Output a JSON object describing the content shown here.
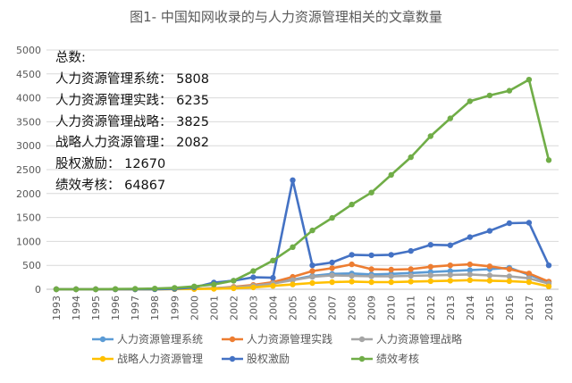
{
  "chart_data": {
    "type": "line",
    "title": "图1- 中国知网收录的与人力资源管理相关的文章数量",
    "xlabel": "",
    "ylabel": "",
    "ylim": [
      0,
      5000
    ],
    "yticks": [
      0,
      500,
      1000,
      1500,
      2000,
      2500,
      3000,
      3500,
      4000,
      4500,
      5000
    ],
    "grid": true,
    "legend_position": "bottom",
    "x": [
      "1993",
      "1994",
      "1995",
      "1996",
      "1997",
      "1998",
      "1999",
      "2000",
      "2001",
      "2002",
      "2003",
      "2004",
      "2005",
      "2006",
      "2007",
      "2008",
      "2009",
      "2010",
      "2011",
      "2012",
      "2013",
      "2014",
      "2015",
      "2016",
      "2017",
      "2018"
    ],
    "series": [
      {
        "name": "人力资源管理系统",
        "color": "#5b9bd5",
        "values": [
          0,
          0,
          0,
          0,
          0,
          2,
          5,
          10,
          20,
          40,
          80,
          130,
          200,
          280,
          320,
          330,
          310,
          320,
          340,
          360,
          380,
          400,
          420,
          450,
          300,
          150
        ]
      },
      {
        "name": "人力资源管理实践",
        "color": "#ed7d31",
        "values": [
          0,
          0,
          0,
          0,
          0,
          2,
          5,
          10,
          20,
          50,
          90,
          150,
          260,
          380,
          440,
          520,
          420,
          410,
          420,
          470,
          500,
          520,
          480,
          420,
          330,
          160
        ]
      },
      {
        "name": "人力资源管理战略",
        "color": "#a5a5a5",
        "values": [
          0,
          0,
          0,
          0,
          0,
          2,
          5,
          10,
          20,
          40,
          70,
          120,
          190,
          260,
          290,
          280,
          270,
          270,
          280,
          290,
          300,
          310,
          290,
          270,
          230,
          120
        ]
      },
      {
        "name": "战略人力资源管理",
        "color": "#ffc000",
        "values": [
          0,
          0,
          0,
          0,
          0,
          1,
          3,
          5,
          10,
          20,
          40,
          70,
          100,
          130,
          150,
          160,
          150,
          150,
          160,
          170,
          180,
          190,
          180,
          170,
          150,
          60
        ]
      },
      {
        "name": "股权激励",
        "color": "#4472c4",
        "values": [
          0,
          0,
          0,
          0,
          0,
          2,
          10,
          40,
          140,
          180,
          250,
          240,
          2280,
          500,
          560,
          720,
          710,
          720,
          800,
          930,
          920,
          1090,
          1220,
          1380,
          1390,
          500
        ]
      },
      {
        "name": "绩效考核",
        "color": "#70ad47",
        "values": [
          0,
          0,
          0,
          5,
          10,
          15,
          30,
          60,
          100,
          180,
          380,
          600,
          880,
          1230,
          1490,
          1770,
          2020,
          2390,
          2760,
          3200,
          3570,
          3930,
          4050,
          4150,
          4380,
          2700
        ]
      }
    ],
    "annotation": {
      "heading": "总数:",
      "lines": [
        "人力资源管理系统：  5808",
        "人力资源管理实践：  6235",
        "人力资源管理战略：  3825",
        "战略人力资源管理：  2082",
        "股权激励：  12670",
        "绩效考核：  64867"
      ]
    }
  }
}
